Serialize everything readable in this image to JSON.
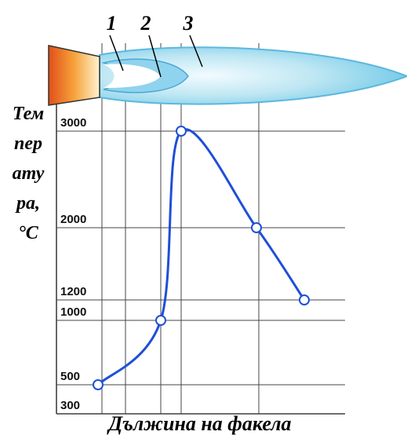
{
  "chart_data": {
    "type": "line",
    "ylabel_lines": [
      "Тем",
      "пер",
      "ату",
      "ра,",
      "°C"
    ],
    "xlabel": "Дължина на факела",
    "annotations": [
      "1",
      "2",
      "3"
    ],
    "values": [
      500,
      1000,
      3000,
      2000,
      1200
    ],
    "color": "#1f4fd8",
    "ylim": [
      300,
      3000
    ],
    "yticks": [
      300,
      500,
      1000,
      1200,
      2000,
      3000
    ],
    "grid": true
  }
}
